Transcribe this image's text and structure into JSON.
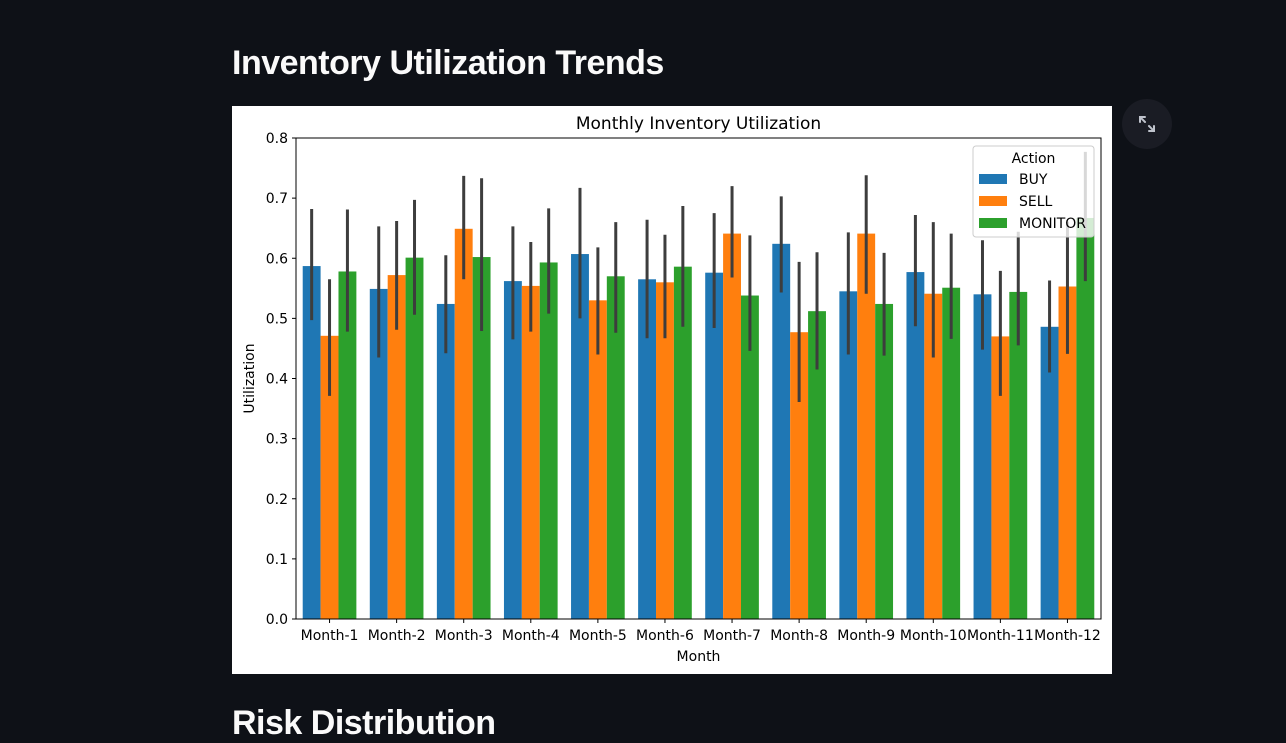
{
  "page": {
    "section_title": "Inventory Utilization Trends",
    "next_section_title": "Risk Distribution",
    "expand_icon": "expand-icon"
  },
  "colors": {
    "background": "#0e1117",
    "text": "#fafafa",
    "BUY": "#1f77b4",
    "SELL": "#ff7f0e",
    "MONITOR": "#2ca02c",
    "error_bar": "#3d3d3d"
  },
  "chart_data": {
    "type": "bar",
    "title": "Monthly Inventory Utilization",
    "xlabel": "Month",
    "ylabel": "Utilization",
    "ylim": [
      0,
      0.8
    ],
    "yticks": [
      "0.0",
      "0.1",
      "0.2",
      "0.3",
      "0.4",
      "0.5",
      "0.6",
      "0.7",
      "0.8"
    ],
    "grid": false,
    "legend": {
      "title": "Action",
      "placement": "top-right"
    },
    "categories": [
      "Month-1",
      "Month-2",
      "Month-3",
      "Month-4",
      "Month-5",
      "Month-6",
      "Month-7",
      "Month-8",
      "Month-9",
      "Month-10",
      "Month-11",
      "Month-12"
    ],
    "series": [
      {
        "name": "BUY",
        "values": [
          0.587,
          0.549,
          0.524,
          0.562,
          0.607,
          0.565,
          0.576,
          0.624,
          0.545,
          0.577,
          0.54,
          0.486
        ],
        "ci_low": [
          0.497,
          0.435,
          0.442,
          0.465,
          0.5,
          0.467,
          0.484,
          0.543,
          0.44,
          0.487,
          0.448,
          0.41
        ],
        "ci_high": [
          0.682,
          0.653,
          0.605,
          0.653,
          0.717,
          0.664,
          0.675,
          0.703,
          0.643,
          0.672,
          0.63,
          0.563
        ]
      },
      {
        "name": "SELL",
        "values": [
          0.471,
          0.572,
          0.649,
          0.554,
          0.53,
          0.56,
          0.641,
          0.477,
          0.641,
          0.541,
          0.47,
          0.553
        ],
        "ci_low": [
          0.371,
          0.481,
          0.565,
          0.478,
          0.44,
          0.467,
          0.568,
          0.361,
          0.541,
          0.435,
          0.371,
          0.441
        ],
        "ci_high": [
          0.565,
          0.662,
          0.737,
          0.627,
          0.618,
          0.639,
          0.72,
          0.594,
          0.738,
          0.66,
          0.579,
          0.661
        ]
      },
      {
        "name": "MONITOR",
        "values": [
          0.578,
          0.601,
          0.602,
          0.593,
          0.57,
          0.586,
          0.538,
          0.512,
          0.524,
          0.551,
          0.544,
          0.667
        ],
        "ci_low": [
          0.478,
          0.506,
          0.479,
          0.508,
          0.476,
          0.486,
          0.446,
          0.415,
          0.438,
          0.466,
          0.455,
          0.562
        ],
        "ci_high": [
          0.681,
          0.697,
          0.733,
          0.683,
          0.66,
          0.687,
          0.638,
          0.61,
          0.609,
          0.641,
          0.644,
          0.777
        ]
      }
    ]
  }
}
